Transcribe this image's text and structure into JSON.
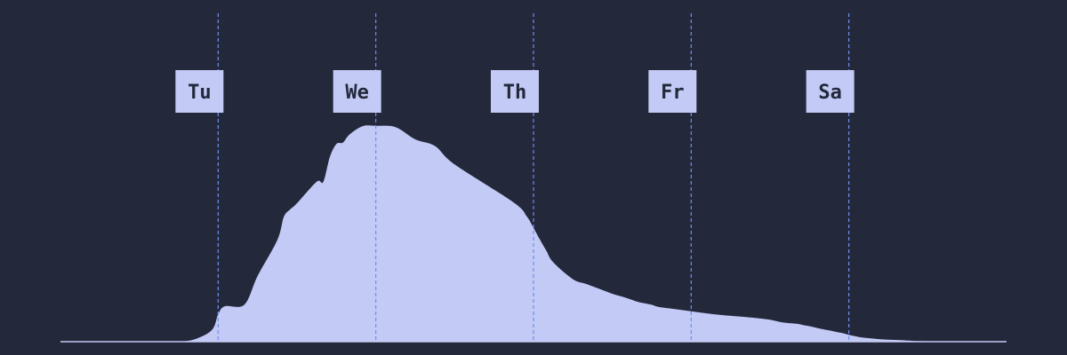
{
  "chart_data": {
    "type": "area",
    "title": "",
    "xlabel": "",
    "ylabel": "",
    "grid": false,
    "legend": "none",
    "x_unit": "hours-from-start-of-monday",
    "xlim": [
      0,
      144
    ],
    "ylim": [
      0,
      1
    ],
    "markers": [
      {
        "label": "Tu",
        "x": 24
      },
      {
        "label": "We",
        "x": 48
      },
      {
        "label": "Th",
        "x": 72
      },
      {
        "label": "Fr",
        "x": 96
      },
      {
        "label": "Sa",
        "x": 120
      }
    ],
    "series": [
      {
        "x": [
          0,
          4,
          6,
          7.6,
          10,
          14.5,
          17,
          20,
          23,
          24,
          25,
          28,
          30,
          33,
          34,
          35,
          36,
          39,
          40,
          41,
          42,
          43,
          44,
          46,
          48,
          51,
          54,
          57,
          60,
          69,
          71,
          72,
          73,
          74,
          75,
          78,
          80,
          82,
          84,
          85,
          86,
          87,
          88,
          90,
          91,
          94,
          96,
          100,
          104,
          106,
          108,
          110,
          112,
          113,
          114,
          115,
          116,
          117,
          118,
          119,
          120,
          121,
          122,
          124,
          126,
          128,
          130,
          131,
          132,
          134,
          136,
          138,
          140,
          144
        ],
        "values": [
          0,
          0,
          0,
          0,
          0,
          0,
          0,
          0.006,
          0.046,
          0.111,
          0.144,
          0.151,
          0.267,
          0.413,
          0.508,
          0.539,
          0.563,
          0.651,
          0.65,
          0.751,
          0.804,
          0.81,
          0.843,
          0.877,
          0.878,
          0.873,
          0.823,
          0.796,
          0.721,
          0.566,
          0.509,
          0.463,
          0.414,
          0.368,
          0.323,
          0.254,
          0.235,
          0.215,
          0.195,
          0.187,
          0.179,
          0.17,
          0.161,
          0.15,
          0.142,
          0.131,
          0.124,
          0.11,
          0.101,
          0.096,
          0.089,
          0.078,
          0.073,
          0.068,
          0.063,
          0.057,
          0.051,
          0.046,
          0.04,
          0.035,
          0.028,
          0.022,
          0.017,
          0.012,
          0.008,
          0.006,
          0.003,
          0.002,
          0.001,
          0.001,
          0,
          0,
          0,
          0
        ]
      }
    ]
  },
  "colors": {
    "background": "#23283a",
    "area": "#c2caf5",
    "marker_line": "#6f8ef0",
    "label_box": "#c2caf5",
    "label_text": "#23283a"
  }
}
